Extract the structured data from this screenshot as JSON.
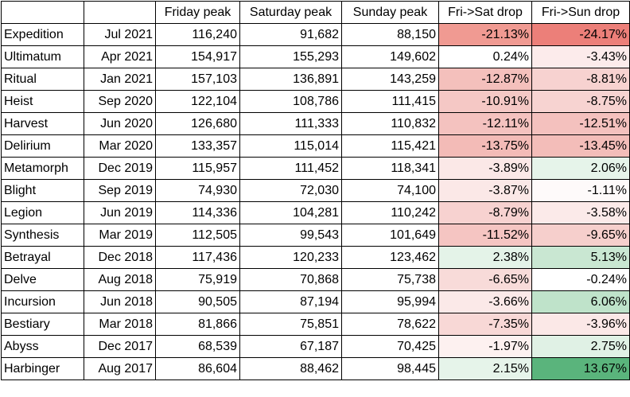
{
  "headers": [
    "",
    "",
    "Friday peak",
    "Saturday peak",
    "Sunday peak",
    "Fri->Sat drop",
    "Fri->Sun drop"
  ],
  "rows": [
    {
      "name": "Expedition",
      "date": "Jul 2021",
      "fri": "116,240",
      "sat": "91,682",
      "sun": "88,150",
      "fri_sat": "-21.13%",
      "fri_sun": "-24.17%",
      "fri_sat_color": "#f09a92",
      "fri_sun_color": "#ec7f79"
    },
    {
      "name": "Ultimatum",
      "date": "Apr 2021",
      "fri": "154,917",
      "sat": "155,293",
      "sun": "149,602",
      "fri_sat": "0.24%",
      "fri_sun": "-3.43%",
      "fri_sat_color": "#ffffff",
      "fri_sun_color": "#fcebeb"
    },
    {
      "name": "Ritual",
      "date": "Jan 2021",
      "fri": "157,103",
      "sat": "136,891",
      "sun": "143,259",
      "fri_sat": "-12.87%",
      "fri_sun": "-8.81%",
      "fri_sat_color": "#f4c0bc",
      "fri_sun_color": "#f7d2d0"
    },
    {
      "name": "Heist",
      "date": "Sep 2020",
      "fri": "122,104",
      "sat": "108,786",
      "sun": "111,415",
      "fri_sat": "-10.91%",
      "fri_sun": "-8.75%",
      "fri_sat_color": "#f5c8c5",
      "fri_sun_color": "#f7d3d1"
    },
    {
      "name": "Harvest",
      "date": "Jun 2020",
      "fri": "126,680",
      "sat": "111,333",
      "sun": "110,832",
      "fri_sat": "-12.11%",
      "fri_sun": "-12.51%",
      "fri_sat_color": "#f4c2bf",
      "fri_sun_color": "#f4c1be"
    },
    {
      "name": "Delirium",
      "date": "Mar 2020",
      "fri": "133,357",
      "sat": "115,014",
      "sun": "115,421",
      "fri_sat": "-13.75%",
      "fri_sun": "-13.45%",
      "fri_sat_color": "#f3bbb7",
      "fri_sun_color": "#f3bdb9"
    },
    {
      "name": "Metamorph",
      "date": "Dec 2019",
      "fri": "115,957",
      "sat": "111,452",
      "sun": "118,341",
      "fri_sat": "-3.89%",
      "fri_sun": "2.06%",
      "fri_sat_color": "#fbe8e7",
      "fri_sun_color": "#e6f4ea"
    },
    {
      "name": "Blight",
      "date": "Sep 2019",
      "fri": "74,930",
      "sat": "72,030",
      "sun": "74,100",
      "fri_sat": "-3.87%",
      "fri_sun": "-1.11%",
      "fri_sat_color": "#fbe8e7",
      "fri_sun_color": "#fefafa"
    },
    {
      "name": "Legion",
      "date": "Jun 2019",
      "fri": "114,336",
      "sat": "104,281",
      "sun": "110,242",
      "fri_sat": "-8.79%",
      "fri_sun": "-3.58%",
      "fri_sat_color": "#f7d2d0",
      "fri_sun_color": "#fbeae9"
    },
    {
      "name": "Synthesis",
      "date": "Mar 2019",
      "fri": "112,505",
      "sat": "99,543",
      "sun": "101,649",
      "fri_sat": "-11.52%",
      "fri_sun": "-9.65%",
      "fri_sat_color": "#f5c5c2",
      "fri_sun_color": "#f6cfcc"
    },
    {
      "name": "Betrayal",
      "date": "Dec 2018",
      "fri": "117,436",
      "sat": "120,233",
      "sun": "123,462",
      "fri_sat": "2.38%",
      "fri_sun": "5.13%",
      "fri_sat_color": "#e4f3e8",
      "fri_sun_color": "#c9e7d2"
    },
    {
      "name": "Delve",
      "date": "Aug 2018",
      "fri": "75,919",
      "sat": "70,868",
      "sun": "75,738",
      "fri_sat": "-6.65%",
      "fri_sun": "-0.24%",
      "fri_sat_color": "#f8dbd9",
      "fri_sun_color": "#ffffff"
    },
    {
      "name": "Incursion",
      "date": "Jun 2018",
      "fri": "90,505",
      "sat": "87,194",
      "sun": "95,994",
      "fri_sat": "-3.66%",
      "fri_sun": "6.06%",
      "fri_sat_color": "#fbe9e8",
      "fri_sun_color": "#bfe3ca"
    },
    {
      "name": "Bestiary",
      "date": "Mar 2018",
      "fri": "81,866",
      "sat": "75,851",
      "sun": "78,622",
      "fri_sat": "-7.35%",
      "fri_sun": "-3.96%",
      "fri_sat_color": "#f8d8d6",
      "fri_sun_color": "#fbe8e7"
    },
    {
      "name": "Abyss",
      "date": "Dec 2017",
      "fri": "68,539",
      "sat": "67,187",
      "sun": "70,425",
      "fri_sat": "-1.97%",
      "fri_sun": "2.75%",
      "fri_sat_color": "#fdf1f0",
      "fri_sun_color": "#e0f1e5"
    },
    {
      "name": "Harbinger",
      "date": "Aug 2017",
      "fri": "86,604",
      "sat": "88,462",
      "sun": "98,445",
      "fri_sat": "2.15%",
      "fri_sun": "13.67%",
      "fri_sat_color": "#e6f4ea",
      "fri_sun_color": "#5ab47c"
    }
  ]
}
